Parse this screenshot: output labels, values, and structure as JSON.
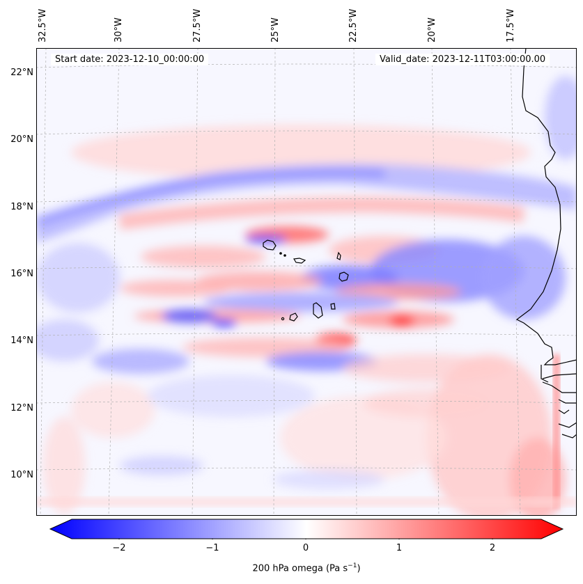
{
  "map": {
    "start_label": "Start date: 2023-12-10_00:00:00",
    "valid_label": "Valid_date: 2023-12-11T03:00:00.00",
    "lon_labels": [
      "32.5°W",
      "30°W",
      "27.5°W",
      "25°W",
      "22.5°W",
      "20°W",
      "17.5°W"
    ],
    "lat_labels": [
      "22°N",
      "20°N",
      "18°N",
      "16°N",
      "14°N",
      "12°N",
      "10°N"
    ],
    "field": "200 hPa omega",
    "colors": {
      "neg": "#0000ff",
      "mid": "#ffffff",
      "pos": "#ff0000",
      "coast": "#000000",
      "grid": "#b0b0b0"
    }
  },
  "colorbar": {
    "ticks": [
      "−2",
      "−1",
      "0",
      "1",
      "2"
    ],
    "label_main": "200 hPa omega (Pa s",
    "label_exp": "−1",
    "label_close": ")"
  }
}
